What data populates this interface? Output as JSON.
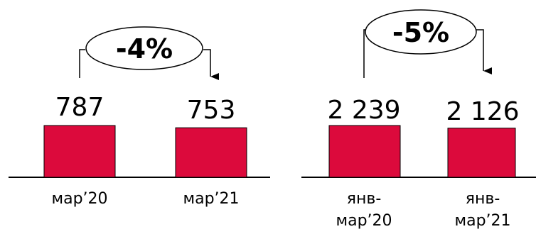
{
  "chart_data": [
    {
      "type": "bar",
      "categories": [
        "мар’20",
        "мар’21"
      ],
      "values": [
        787,
        753
      ],
      "value_labels": [
        "787",
        "753"
      ],
      "change_label": "-4%",
      "bar_color": "#DC0A3C"
    },
    {
      "type": "bar",
      "categories": [
        [
          "янв-",
          "мар’20"
        ],
        [
          "янв-",
          "мар’21"
        ]
      ],
      "values": [
        2239,
        2126
      ],
      "value_labels": [
        "2 239",
        "2 126"
      ],
      "change_label": "-5%",
      "bar_color": "#DC0A3C"
    }
  ]
}
